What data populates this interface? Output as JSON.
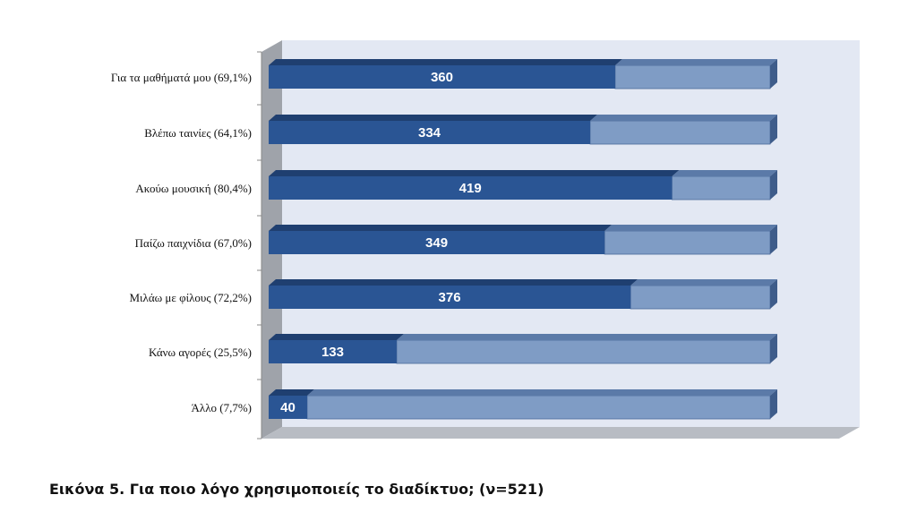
{
  "chart_data": {
    "type": "bar",
    "orientation": "horizontal",
    "stacked_total": 521,
    "categories": [
      "Για τα μαθήματά μου (69,1%)",
      "Βλέπω ταινίες (64,1%)",
      "Ακούω μουσική (80,4%)",
      "Παίζω παιχνίδια (67,0%)",
      "Μιλάω με φίλους (72,2%)",
      "Κάνω αγορές (25,5%)",
      "Άλλο (7,7%)"
    ],
    "values": [
      360,
      334,
      419,
      349,
      376,
      133,
      40
    ],
    "value_labels": [
      "360",
      "334",
      "419",
      "349",
      "376",
      "133",
      "40"
    ],
    "xlim": [
      0,
      521
    ],
    "grid": false,
    "legend": "none",
    "colors": {
      "filled": "#2a5594",
      "filled_top": "#1f3f70",
      "remaining": "#7f9cc5",
      "remaining_top": "#5b7aa8",
      "wall": "#e3e8f3",
      "floor": "#b8bcc3"
    }
  },
  "caption": "Εικόνα 5. Για ποιο λόγο χρησιμοποιείς το διαδίκτυο; (ν=521)"
}
